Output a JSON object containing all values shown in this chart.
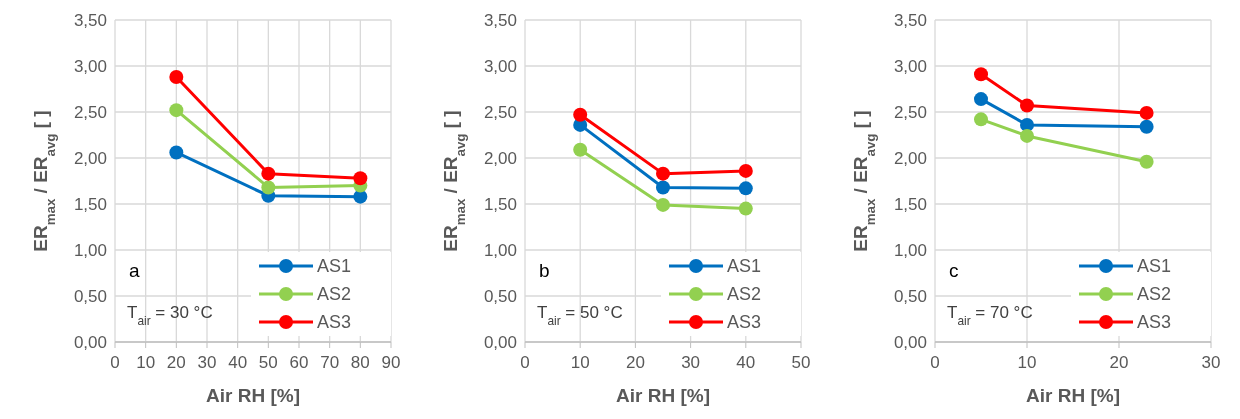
{
  "chart_data": [
    {
      "type": "line",
      "xlabel": "Air RH [%]",
      "ylabel": "ER$_{max}$ / ER$_{avg}$ [ ]",
      "annotations": [
        "a",
        "T$_{air}$ = 30 °C"
      ],
      "x": [
        20,
        50,
        80
      ],
      "series": [
        {
          "name": "AS1",
          "color": "#0070c0",
          "values": [
            2.06,
            1.59,
            1.58
          ]
        },
        {
          "name": "AS2",
          "color": "#92d050",
          "values": [
            2.52,
            1.68,
            1.7
          ]
        },
        {
          "name": "AS3",
          "color": "#ff0000",
          "values": [
            2.88,
            1.83,
            1.78
          ]
        }
      ],
      "xlim": [
        0,
        90
      ],
      "xticks": [
        0,
        10,
        20,
        30,
        40,
        50,
        60,
        70,
        80,
        90
      ],
      "ylim": [
        0,
        3.5
      ],
      "yticks": [
        {
          "value": 0,
          "label": "0,00"
        },
        {
          "value": 0.5,
          "label": "0,50"
        },
        {
          "value": 1,
          "label": "1,00"
        },
        {
          "value": 1.5,
          "label": "1,50"
        },
        {
          "value": 2,
          "label": "2,00"
        },
        {
          "value": 2.5,
          "label": "2,50"
        },
        {
          "value": 3,
          "label": "3,00"
        },
        {
          "value": 3.5,
          "label": "3,50"
        }
      ],
      "grid": true,
      "legend": "bottom right",
      "marker": "circle"
    },
    {
      "type": "line",
      "xlabel": "Air RH [%]",
      "ylabel": "ER$_{max}$ / ER$_{avg}$ [ ]",
      "annotations": [
        "b",
        "T$_{air}$ = 50 °C"
      ],
      "x": [
        10,
        25,
        40
      ],
      "series": [
        {
          "name": "AS1",
          "color": "#0070c0",
          "values": [
            2.36,
            1.68,
            1.67
          ]
        },
        {
          "name": "AS2",
          "color": "#92d050",
          "values": [
            2.09,
            1.49,
            1.45
          ]
        },
        {
          "name": "AS3",
          "color": "#ff0000",
          "values": [
            2.47,
            1.83,
            1.86
          ]
        }
      ],
      "xlim": [
        0,
        50
      ],
      "xticks": [
        0,
        10,
        20,
        30,
        40,
        50
      ],
      "ylim": [
        0,
        3.5
      ],
      "yticks": [
        {
          "value": 0,
          "label": "0,00"
        },
        {
          "value": 0.5,
          "label": "0,50"
        },
        {
          "value": 1,
          "label": "1,00"
        },
        {
          "value": 1.5,
          "label": "1,50"
        },
        {
          "value": 2,
          "label": "2,00"
        },
        {
          "value": 2.5,
          "label": "2,50"
        },
        {
          "value": 3,
          "label": "3,00"
        },
        {
          "value": 3.5,
          "label": "3,50"
        }
      ],
      "grid": true,
      "legend": "bottom right",
      "marker": "circle"
    },
    {
      "type": "line",
      "xlabel": "Air RH [%]",
      "ylabel": "ER$_{max}$ / ER$_{avg}$ [ ]",
      "annotations": [
        "c",
        "T$_{air}$ = 70 °C"
      ],
      "x": [
        5,
        10,
        23
      ],
      "series": [
        {
          "name": "AS1",
          "color": "#0070c0",
          "values": [
            2.64,
            2.36,
            2.34
          ]
        },
        {
          "name": "AS2",
          "color": "#92d050",
          "values": [
            2.42,
            2.24,
            1.96
          ]
        },
        {
          "name": "AS3",
          "color": "#ff0000",
          "values": [
            2.91,
            2.57,
            2.49
          ]
        }
      ],
      "xlim": [
        0,
        30
      ],
      "xticks": [
        0,
        10,
        20,
        30
      ],
      "ylim": [
        0,
        3.5
      ],
      "yticks": [
        {
          "value": 0,
          "label": "0,00"
        },
        {
          "value": 0.5,
          "label": "0,50"
        },
        {
          "value": 1,
          "label": "1,00"
        },
        {
          "value": 1.5,
          "label": "1,50"
        },
        {
          "value": 2,
          "label": "2,00"
        },
        {
          "value": 2.5,
          "label": "2,50"
        },
        {
          "value": 3,
          "label": "3,00"
        },
        {
          "value": 3.5,
          "label": "3,50"
        }
      ],
      "grid": true,
      "legend": "bottom right",
      "marker": "circle"
    }
  ]
}
